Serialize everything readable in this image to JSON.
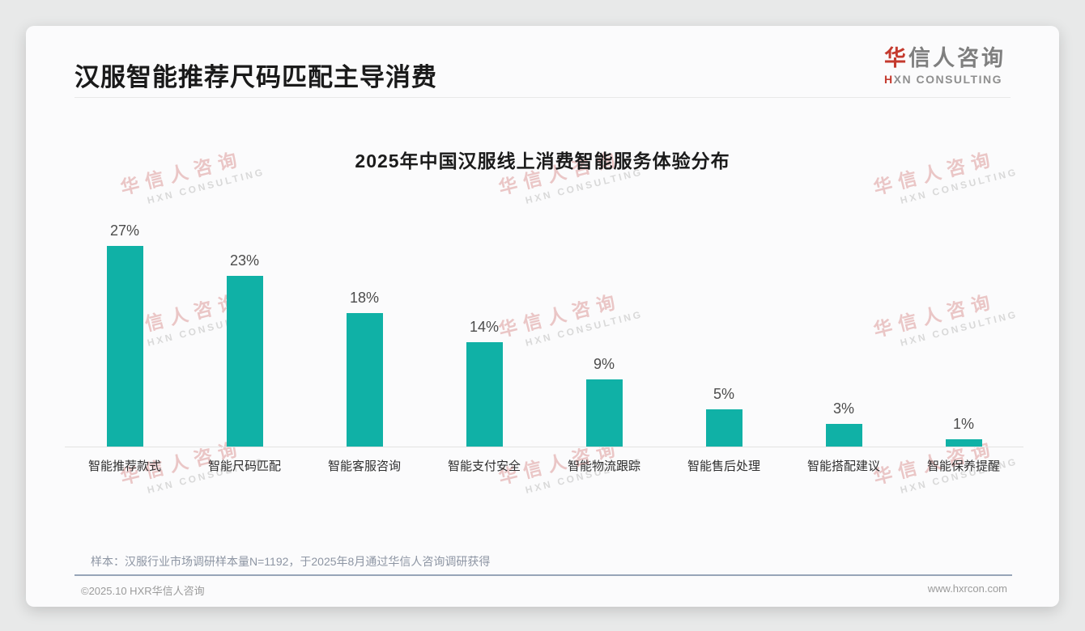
{
  "header": {
    "title": "汉服智能推荐尺码匹配主导消费"
  },
  "logo": {
    "cn_first": "华",
    "cn_rest": "信人咨询",
    "en": "XN CONSULTING",
    "en_mark": "H"
  },
  "watermark": {
    "cn": "华信人咨询",
    "en": "HXN CONSULTING"
  },
  "chart_data": {
    "type": "bar",
    "title": "2025年中国汉服线上消费智能服务体验分布",
    "categories": [
      "智能推荐款式",
      "智能尺码匹配",
      "智能客服咨询",
      "智能支付安全",
      "智能物流跟踪",
      "智能售后处理",
      "智能搭配建议",
      "智能保养提醒"
    ],
    "values": [
      27,
      23,
      18,
      14,
      9,
      5,
      3,
      1
    ],
    "unit": "%",
    "bar_color": "#10b1a6",
    "ylim": [
      0,
      27
    ],
    "grid": false,
    "legend": false,
    "value_labels": "above bars"
  },
  "note": "样本：汉服行业市场调研样本量N=1192，于2025年8月通过华信人咨询调研获得",
  "footer": {
    "copyright": "©2025.10 HXR华信人咨询",
    "website": "www.hxrcon.com"
  },
  "colors": {
    "bar": "#10b1a6",
    "title": "#1a1a1a",
    "logo_accent": "#c43a2e",
    "watermark_cn": "#eac6c6",
    "watermark_en": "#d9d9d9",
    "footer_divider": "#97a5b8"
  }
}
